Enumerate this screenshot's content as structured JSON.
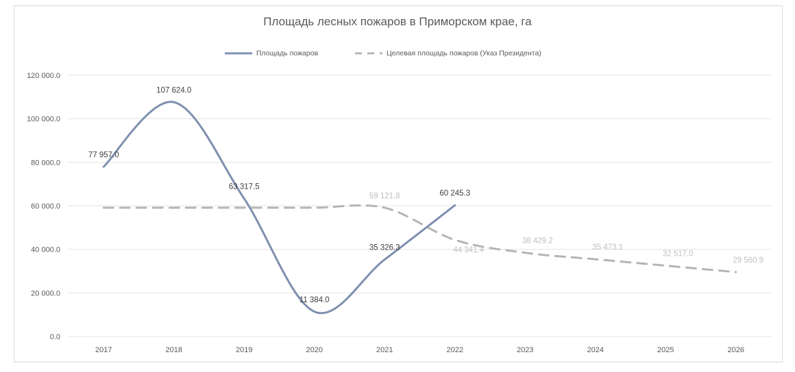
{
  "chart_data": {
    "type": "line",
    "title": "Площадь лесных пожаров в Приморском крае, га",
    "categories": [
      "2017",
      "2018",
      "2019",
      "2020",
      "2021",
      "2022",
      "2023",
      "2024",
      "2025",
      "2026"
    ],
    "ylim": [
      0,
      120000
    ],
    "yticks": [
      "0.0",
      "20 000.0",
      "40 000.0",
      "60 000.0",
      "80 000.0",
      "100 000.0",
      "120 000.0"
    ],
    "grid": true,
    "legend_position": "top",
    "series": [
      {
        "name": "Площадь пожаров",
        "color": "#7f8fb0",
        "style": "solid",
        "values": [
          77957.0,
          107624.0,
          63317.5,
          11384.0,
          35326.3,
          60245.3,
          null,
          null,
          null,
          null
        ],
        "labels": [
          "77 957.0",
          "107 624.0",
          "63 317.5",
          "11 384.0",
          "35 326.3",
          "60 245.3",
          null,
          null,
          null,
          null
        ]
      },
      {
        "name": "Целевая площадь пожаров (Указ Президента)",
        "color": "#b4b4b4",
        "style": "dashed",
        "values": [
          59121.8,
          59121.8,
          59121.8,
          59121.8,
          59121.8,
          44341.4,
          38429.2,
          35473.1,
          32517.0,
          29560.9
        ],
        "labels": [
          null,
          null,
          null,
          null,
          "59 121.8",
          "44 341.4",
          "38 429.2",
          "35 473.1",
          "32 517.0",
          "29 560.9"
        ]
      }
    ]
  }
}
